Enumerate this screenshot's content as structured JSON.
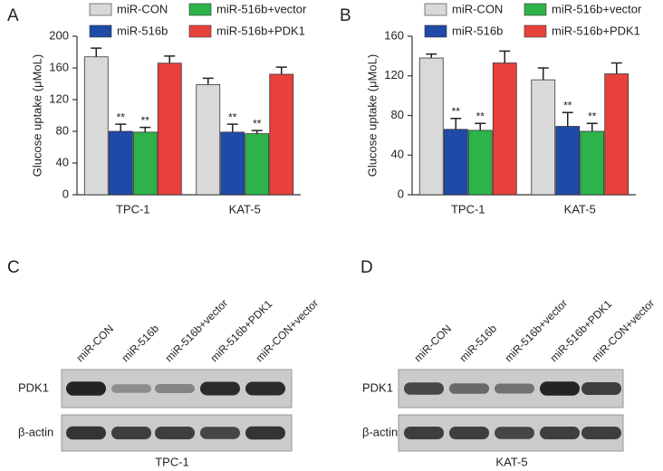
{
  "chart_data": [
    {
      "type": "bar",
      "panel": "A",
      "y_label": "Glucose uptake (μMoL)",
      "categories": [
        "TPC-1",
        "KAT-5"
      ],
      "ylim": [
        0,
        200
      ],
      "yticks": [
        0,
        40,
        80,
        120,
        160,
        200
      ],
      "series": [
        {
          "name": "miR-CON",
          "color": "#d9d9d9",
          "values": [
            174,
            139
          ],
          "errors": [
            11,
            8
          ]
        },
        {
          "name": "miR-516b",
          "color": "#1f4aa8",
          "values": [
            80,
            79
          ],
          "errors": [
            9,
            10
          ],
          "significance": [
            "**",
            "**"
          ]
        },
        {
          "name": "miR-516b+vector",
          "color": "#2db34a",
          "values": [
            79,
            77
          ],
          "errors": [
            6,
            4
          ],
          "significance": [
            "**",
            "**"
          ]
        },
        {
          "name": "miR-516b+PDK1",
          "color": "#e8413c",
          "values": [
            166,
            152
          ],
          "errors": [
            9,
            9
          ]
        }
      ]
    },
    {
      "type": "bar",
      "panel": "B",
      "y_label": "Glucose uptake (μMoL)",
      "categories": [
        "TPC-1",
        "KAT-5"
      ],
      "ylim": [
        0,
        160
      ],
      "yticks": [
        0,
        40,
        80,
        120,
        160
      ],
      "series": [
        {
          "name": "miR-CON",
          "color": "#d9d9d9",
          "values": [
            138,
            116
          ],
          "errors": [
            4,
            12
          ]
        },
        {
          "name": "miR-516b",
          "color": "#1f4aa8",
          "values": [
            66,
            69
          ],
          "errors": [
            11,
            14
          ],
          "significance": [
            "**",
            "**"
          ]
        },
        {
          "name": "miR-516b+vector",
          "color": "#2db34a",
          "values": [
            65,
            64
          ],
          "errors": [
            7,
            8
          ],
          "significance": [
            "**",
            "**"
          ]
        },
        {
          "name": "miR-516b+PDK1",
          "color": "#e8413c",
          "values": [
            133,
            122
          ],
          "errors": [
            12,
            11
          ]
        }
      ]
    }
  ],
  "blots": [
    {
      "panel": "C",
      "lanes": [
        "miR-CON",
        "miR-516b",
        "miR-516b+vector",
        "miR-516b+PDK1",
        "miR-CON+vector"
      ],
      "rows": [
        "PDK1",
        "β-actin"
      ],
      "caption": "TPC-1"
    },
    {
      "panel": "D",
      "lanes": [
        "miR-CON",
        "miR-516b",
        "miR-516b+vector",
        "miR-516b+PDK1",
        "miR-CON+vector"
      ],
      "rows": [
        "PDK1",
        "β-actin"
      ],
      "caption": "KAT-5"
    }
  ]
}
